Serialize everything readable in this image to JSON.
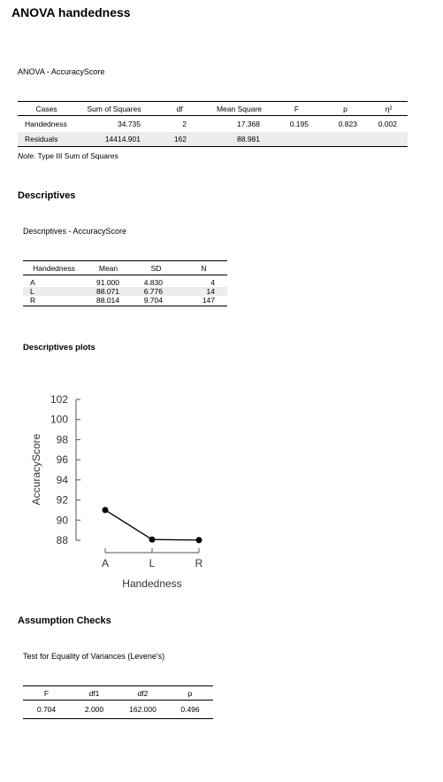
{
  "page_title": "ANOVA handedness",
  "anova": {
    "title": "ANOVA - AccuracyScore",
    "headers": [
      "Cases",
      "Sum of Squares",
      "df",
      "Mean Square",
      "F",
      "p",
      "η²"
    ],
    "rows": [
      {
        "cases": "Handedness",
        "ss": "34.735",
        "df": "2",
        "ms": "17.368",
        "f": "0.195",
        "p": "0.823",
        "eta": "0.002"
      },
      {
        "cases": "Residuals",
        "ss": "14414.901",
        "df": "162",
        "ms": "88.981",
        "f": "",
        "p": "",
        "eta": ""
      }
    ],
    "note_label": "Note.",
    "note_text": "Type III Sum of Squares"
  },
  "descriptives": {
    "section_title": "Descriptives",
    "table_title": "Descriptives - AccuracyScore",
    "headers": [
      "Handedness",
      "Mean",
      "SD",
      "N"
    ],
    "rows": [
      {
        "group": "A",
        "mean": "91.000",
        "sd": "4.830",
        "n": "4"
      },
      {
        "group": "L",
        "mean": "88.071",
        "sd": "6.776",
        "n": "14"
      },
      {
        "group": "R",
        "mean": "88.014",
        "sd": "9.704",
        "n": "147"
      }
    ]
  },
  "plots": {
    "section_title": "Descriptives plots"
  },
  "chart_data": {
    "type": "line",
    "categories": [
      "A",
      "L",
      "R"
    ],
    "values": [
      91.0,
      88.071,
      88.014
    ],
    "xlabel": "Handedness",
    "ylabel": "AccuracyScore",
    "yticks": [
      88,
      90,
      92,
      94,
      96,
      98,
      100,
      102
    ],
    "ylim": [
      88,
      102
    ],
    "grid": false,
    "marker_color": "#000000"
  },
  "assumptions": {
    "section_title": "Assumption Checks",
    "table_title": "Test for Equality of Variances (Levene's)",
    "headers": [
      "F",
      "df1",
      "df2",
      "p"
    ],
    "row": {
      "f": "0.704",
      "df1": "2.000",
      "df2": "162.000",
      "p": "0.496"
    }
  }
}
